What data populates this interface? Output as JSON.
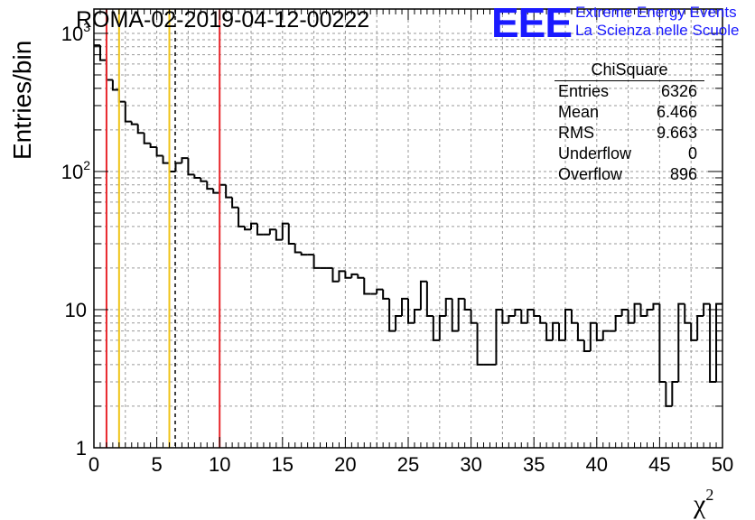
{
  "title": "ROMA-02-2019-04-12-00222",
  "logo": {
    "mark": "EEE",
    "line1": "Extreme Energy Events",
    "line2": "La Scienza nelle Scuole"
  },
  "stats_box": {
    "name": "ChiSquare",
    "rows": [
      {
        "label": "Entries",
        "value": "6326"
      },
      {
        "label": "Mean",
        "value": "6.466"
      },
      {
        "label": "RMS",
        "value": "9.663"
      },
      {
        "label": "Underflow",
        "value": "0"
      },
      {
        "label": "Overflow",
        "value": "896"
      }
    ]
  },
  "colors": {
    "red_line": "#e8262b",
    "yellow_line": "#f0c419",
    "logo_blue": "#1a1aff"
  },
  "chart_data": {
    "type": "histogram",
    "ylabel": "Entries/bin",
    "xlabel": "χ",
    "xlabel_sup": "2",
    "xlim": [
      0,
      50
    ],
    "ylim": [
      1,
      1500
    ],
    "y_scale": "log",
    "grid": true,
    "bin_width": 0.5,
    "x_ticks": [
      "0",
      "5",
      "10",
      "15",
      "20",
      "25",
      "30",
      "35",
      "40",
      "45",
      "50"
    ],
    "y_ticks": [
      {
        "value": 1,
        "label": "1"
      },
      {
        "value": 10,
        "label": "10"
      },
      {
        "value": 100,
        "label": "10",
        "sup": "2"
      },
      {
        "value": 1000,
        "label": "10",
        "sup": "3"
      }
    ],
    "values": [
      820,
      640,
      460,
      390,
      320,
      230,
      220,
      190,
      160,
      150,
      130,
      115,
      100,
      115,
      125,
      95,
      90,
      85,
      75,
      70,
      80,
      65,
      55,
      40,
      38,
      42,
      35,
      35,
      38,
      32,
      42,
      30,
      26,
      25,
      25,
      20,
      20,
      20,
      16,
      19,
      17,
      18,
      17,
      13,
      13,
      14,
      12,
      7,
      9,
      12,
      8,
      10,
      16,
      9,
      6,
      9,
      12,
      7,
      12,
      10,
      8,
      4,
      4,
      4,
      10,
      8,
      9,
      10,
      8,
      10,
      9,
      8,
      6,
      8,
      6,
      10,
      8,
      6,
      5,
      8,
      6,
      7,
      7,
      9,
      10,
      8,
      11,
      9,
      10,
      11,
      3,
      2,
      3,
      11,
      8,
      6,
      9,
      11,
      3,
      11
    ],
    "vertical_lines": [
      {
        "x": 1.0,
        "color": "red",
        "style": "solid"
      },
      {
        "x": 2.0,
        "color": "yellow",
        "style": "solid"
      },
      {
        "x": 6.0,
        "color": "yellow",
        "style": "solid"
      },
      {
        "x": 6.466,
        "color": "black",
        "style": "dashed"
      },
      {
        "x": 10.0,
        "color": "red",
        "style": "solid"
      }
    ]
  }
}
